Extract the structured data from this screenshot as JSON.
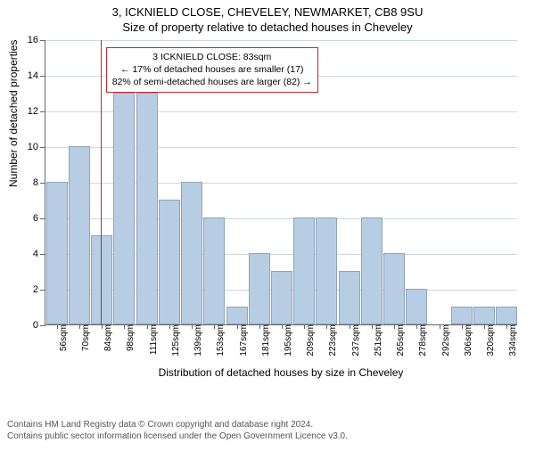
{
  "titles": {
    "line1": "3, ICKNIELD CLOSE, CHEVELEY, NEWMARKET, CB8 9SU",
    "line2": "Size of property relative to detached houses in Cheveley"
  },
  "axes": {
    "y_label": "Number of detached properties",
    "x_label": "Distribution of detached houses by size in Cheveley",
    "y_max": 16,
    "y_tick_step": 2,
    "y_ticks": [
      0,
      2,
      4,
      6,
      8,
      10,
      12,
      14,
      16
    ],
    "x_categories": [
      "56sqm",
      "70sqm",
      "84sqm",
      "98sqm",
      "111sqm",
      "125sqm",
      "139sqm",
      "153sqm",
      "167sqm",
      "181sqm",
      "195sqm",
      "209sqm",
      "223sqm",
      "237sqm",
      "251sqm",
      "265sqm",
      "278sqm",
      "292sqm",
      "306sqm",
      "320sqm",
      "334sqm"
    ]
  },
  "bars": {
    "values": [
      8,
      10,
      5,
      13,
      13,
      7,
      8,
      6,
      1,
      4,
      3,
      6,
      6,
      3,
      6,
      4,
      2,
      0,
      1,
      1,
      1
    ],
    "fill_color": "#b6cde4",
    "edge_color": "#90a4b8",
    "bar_width_frac": 0.95
  },
  "reference": {
    "position_sqm": 83,
    "x_start_sqm": 49,
    "x_end_sqm": 341,
    "line_color": "#c62828"
  },
  "annotation": {
    "line1": "3 ICKNIELD CLOSE: 83sqm",
    "line2": "← 17% of detached houses are smaller (17)",
    "line3": "82% of semi-detached houses are larger (82) →",
    "border_color": "#c62828",
    "bg_color": "#ffffff",
    "fontsize": 10.5
  },
  "style": {
    "background_color": "#ffffff",
    "grid_color": "#cfd8dc",
    "axis_color": "#666666",
    "title_fontsize": 13,
    "label_fontsize": 12,
    "tick_fontsize": 11
  },
  "footer": {
    "line1": "Contains HM Land Registry data © Crown copyright and database right 2024.",
    "line2": "Contains public sector information licensed under the Open Government Licence v3.0."
  },
  "chart_type": "histogram"
}
